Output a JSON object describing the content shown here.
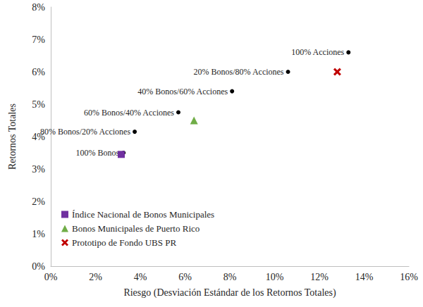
{
  "chart_data": {
    "type": "scatter",
    "x_label": "Riesgo (Desviación Estándar de los Retornos Totales)",
    "y_label": "Retornos Totales",
    "xlim": [
      0,
      16
    ],
    "xticks": [
      {
        "value": 0,
        "label": "0%"
      },
      {
        "value": 2,
        "label": "2%"
      },
      {
        "value": 4,
        "label": "4%"
      },
      {
        "value": 6,
        "label": "6%"
      },
      {
        "value": 8,
        "label": "8%"
      },
      {
        "value": 10,
        "label": "10%"
      },
      {
        "value": 12,
        "label": "12%"
      },
      {
        "value": 14,
        "label": "14%"
      },
      {
        "value": 16,
        "label": "16%"
      }
    ],
    "ylim": [
      0,
      8
    ],
    "yticks": [
      {
        "value": 0,
        "label": "0%"
      },
      {
        "value": 1,
        "label": "1%"
      },
      {
        "value": 2,
        "label": "2%"
      },
      {
        "value": 3,
        "label": "3%"
      },
      {
        "value": 4,
        "label": "4%"
      },
      {
        "value": 5,
        "label": "5%"
      },
      {
        "value": 6,
        "label": "6%"
      },
      {
        "value": 7,
        "label": "7%"
      },
      {
        "value": 8,
        "label": "8%"
      }
    ],
    "grid": false,
    "legend": "lower left",
    "series": [
      {
        "point_labels": [
          "100% Bonos",
          "80% Bonos/20% Acciones",
          "60% Bonos/40% Acciones",
          "40% Bonos/60% Acciones",
          "20% Bonos/80% Acciones",
          "100% Acciones"
        ],
        "x": [
          3.25,
          3.75,
          5.7,
          8.1,
          10.6,
          13.3
        ],
        "values": [
          3.5,
          4.15,
          4.75,
          5.4,
          6.0,
          6.6
        ],
        "color": "#000000",
        "marker": "circle",
        "data_labels": true
      },
      {
        "name": "Índice Nacional de Bonos Municipales",
        "x": [
          3.15
        ],
        "values": [
          3.45
        ],
        "color": "#7030a0",
        "marker": "square"
      },
      {
        "name": "Bonos Municipales de Puerto Rico",
        "x": [
          6.4
        ],
        "values": [
          4.5
        ],
        "color": "#70ad47",
        "marker": "triangle"
      },
      {
        "name": "Prototipo de Fondo UBS PR",
        "x": [
          12.8
        ],
        "values": [
          6.0
        ],
        "color": "#c00000",
        "marker": "x"
      }
    ]
  }
}
